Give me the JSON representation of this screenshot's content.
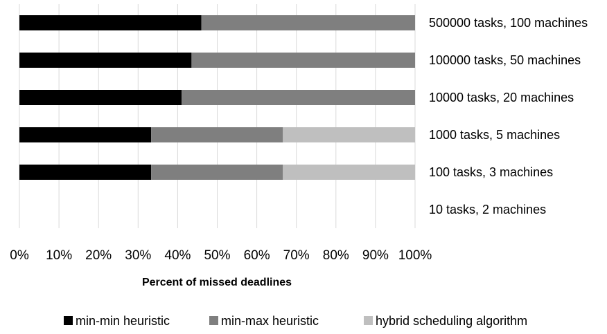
{
  "chart_data": {
    "type": "bar",
    "orientation": "horizontal",
    "stacked": "percent",
    "categories": [
      "500000 tasks, 100 machines",
      "100000 tasks, 50 machines",
      "10000 tasks, 20 machines",
      "1000 tasks, 5 machines",
      "100 tasks, 3 machines",
      "10 tasks, 2 machines"
    ],
    "series": [
      {
        "name": "min-min heuristic",
        "color": "#000000",
        "values": [
          46,
          43.5,
          41,
          33.3,
          33.3,
          0
        ]
      },
      {
        "name": "min-max heuristic",
        "color": "#7f7f7f",
        "values": [
          54,
          56.5,
          59,
          33.3,
          33.3,
          0
        ]
      },
      {
        "name": "hybrid scheduling algorithm",
        "color": "#bfbfbf",
        "values": [
          0,
          0,
          0,
          33.4,
          33.4,
          0
        ]
      }
    ],
    "xlim": [
      0,
      100
    ],
    "xticks": [
      "0%",
      "10%",
      "20%",
      "30%",
      "40%",
      "50%",
      "60%",
      "70%",
      "80%",
      "90%",
      "100%"
    ],
    "xlabel": "Percent of missed deadlines",
    "ylabel": "",
    "title": "",
    "grid": "vertical",
    "legend": "bottom"
  }
}
